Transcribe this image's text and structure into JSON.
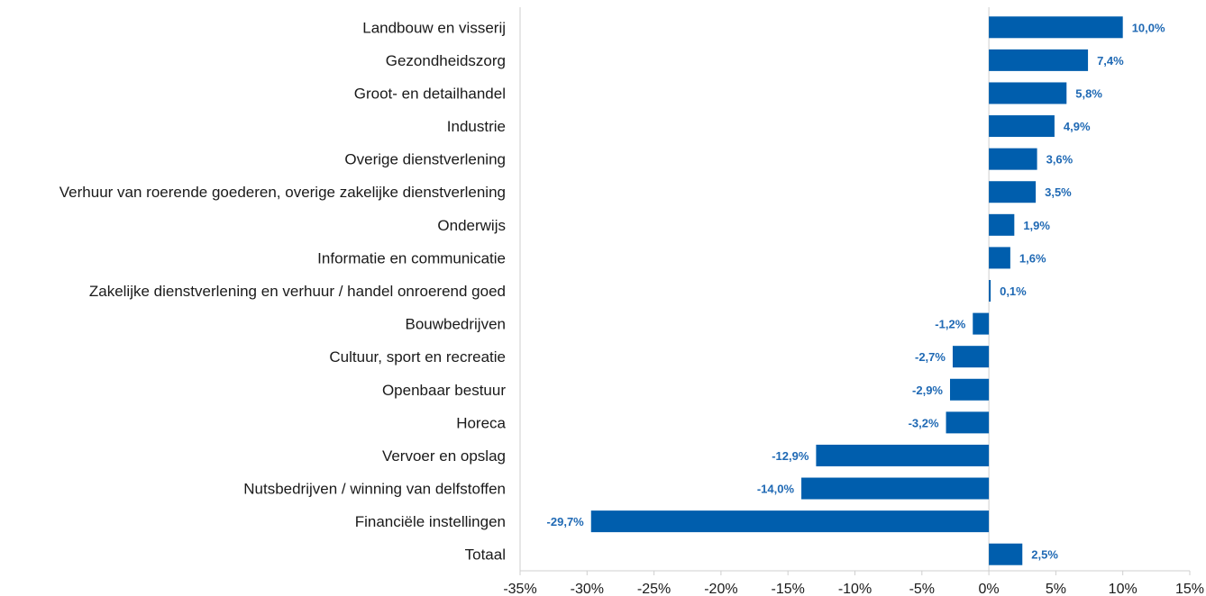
{
  "chart_data": {
    "type": "bar",
    "orientation": "horizontal",
    "categories": [
      "Landbouw en visserij",
      "Gezondheidszorg",
      "Groot- en detailhandel",
      "Industrie",
      "Overige dienstverlening",
      "Verhuur van roerende goederen, overige zakelijke dienstverlening",
      "Onderwijs",
      "Informatie en communicatie",
      "Zakelijke dienstverlening en verhuur / handel onroerend goed",
      "Bouwbedrijven",
      "Cultuur, sport en recreatie",
      "Openbaar bestuur",
      "Horeca",
      "Vervoer en opslag",
      "Nutsbedrijven / winning van delfstoffen",
      "Financiële instellingen",
      "Totaal"
    ],
    "values": [
      10.0,
      7.4,
      5.8,
      4.9,
      3.6,
      3.5,
      1.9,
      1.6,
      0.1,
      -1.2,
      -2.7,
      -2.9,
      -3.2,
      -12.9,
      -14.0,
      -29.7,
      2.5
    ],
    "data_labels": [
      "10,0%",
      "7,4%",
      "5,8%",
      "4,9%",
      "3,6%",
      "3,5%",
      "1,9%",
      "1,6%",
      "0,1%",
      "-1,2%",
      "-2,7%",
      "-2,9%",
      "-3,2%",
      "-12,9%",
      "-14,0%",
      "-29,7%",
      "2,5%"
    ],
    "xlim": [
      -35,
      15
    ],
    "x_ticks": [
      -35,
      -30,
      -25,
      -20,
      -15,
      -10,
      -5,
      0,
      5,
      10,
      15
    ],
    "x_tick_labels": [
      "-35%",
      "-30%",
      "-25%",
      "-20%",
      "-15%",
      "-10%",
      "-5%",
      "0%",
      "5%",
      "10%",
      "15%"
    ],
    "title": "",
    "xlabel": "",
    "ylabel": "",
    "grid": false,
    "bar_color": "#005ead",
    "label_color": "#1f69b4"
  }
}
